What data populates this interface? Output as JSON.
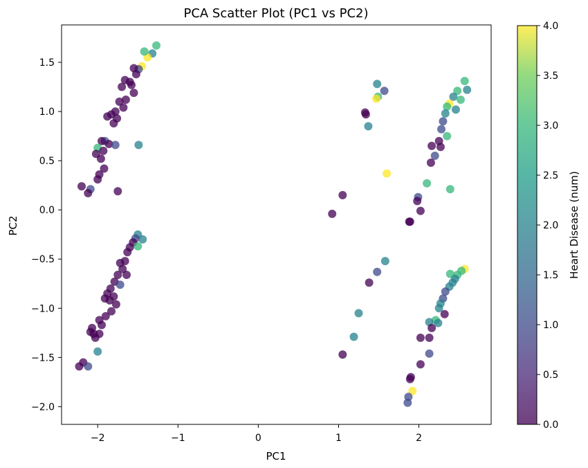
{
  "chart_data": {
    "type": "scatter",
    "title": "PCA Scatter Plot (PC1 vs PC2)",
    "xlabel": "PC1",
    "ylabel": "PC2",
    "xlim": [
      -2.45,
      2.9
    ],
    "ylim": [
      -2.18,
      1.88
    ],
    "xticks": [
      -2,
      -1,
      0,
      1,
      2
    ],
    "yticks": [
      -2.0,
      -1.5,
      -1.0,
      -0.5,
      0.0,
      0.5,
      1.0,
      1.5
    ],
    "grid": false,
    "colormap": "viridis",
    "colorbar": {
      "label": "Heart Disease (num)",
      "range": [
        0,
        4
      ],
      "ticks": [
        0.0,
        0.5,
        1.0,
        1.5,
        2.0,
        2.5,
        3.0,
        3.5,
        4.0
      ]
    },
    "points": [
      {
        "x": -1.27,
        "y": 1.67,
        "c": 3
      },
      {
        "x": -1.32,
        "y": 1.59,
        "c": 2
      },
      {
        "x": -1.38,
        "y": 1.55,
        "c": 4
      },
      {
        "x": -1.42,
        "y": 1.61,
        "c": 3
      },
      {
        "x": -1.45,
        "y": 1.46,
        "c": 4
      },
      {
        "x": -1.49,
        "y": 1.43,
        "c": 1
      },
      {
        "x": -1.55,
        "y": 1.44,
        "c": 0
      },
      {
        "x": -1.52,
        "y": 1.38,
        "c": 0
      },
      {
        "x": -1.6,
        "y": 1.3,
        "c": 0
      },
      {
        "x": -1.66,
        "y": 1.32,
        "c": 0
      },
      {
        "x": -1.7,
        "y": 1.25,
        "c": 0
      },
      {
        "x": -1.58,
        "y": 1.27,
        "c": 0
      },
      {
        "x": -1.55,
        "y": 1.19,
        "c": 0
      },
      {
        "x": -1.65,
        "y": 1.12,
        "c": 0
      },
      {
        "x": -1.73,
        "y": 1.1,
        "c": 0
      },
      {
        "x": -1.78,
        "y": 1.0,
        "c": 0
      },
      {
        "x": -1.68,
        "y": 1.04,
        "c": 0
      },
      {
        "x": -1.83,
        "y": 0.97,
        "c": 0
      },
      {
        "x": -1.88,
        "y": 0.95,
        "c": 0
      },
      {
        "x": -1.76,
        "y": 0.93,
        "c": 0
      },
      {
        "x": -1.8,
        "y": 0.88,
        "c": 0
      },
      {
        "x": -1.91,
        "y": 0.7,
        "c": 1
      },
      {
        "x": -1.95,
        "y": 0.7,
        "c": 0
      },
      {
        "x": -1.86,
        "y": 0.67,
        "c": 0
      },
      {
        "x": -2.0,
        "y": 0.63,
        "c": 3
      },
      {
        "x": -1.78,
        "y": 0.66,
        "c": 1
      },
      {
        "x": -1.93,
        "y": 0.6,
        "c": 0
      },
      {
        "x": -2.02,
        "y": 0.57,
        "c": 0
      },
      {
        "x": -1.96,
        "y": 0.52,
        "c": 0
      },
      {
        "x": -1.92,
        "y": 0.42,
        "c": 0
      },
      {
        "x": -1.98,
        "y": 0.36,
        "c": 0
      },
      {
        "x": -2.0,
        "y": 0.31,
        "c": 0
      },
      {
        "x": -2.2,
        "y": 0.24,
        "c": 0
      },
      {
        "x": -2.09,
        "y": 0.21,
        "c": 1
      },
      {
        "x": -2.12,
        "y": 0.17,
        "c": 0
      },
      {
        "x": -1.75,
        "y": 0.19,
        "c": 0
      },
      {
        "x": -1.49,
        "y": 0.66,
        "c": 2
      },
      {
        "x": -1.5,
        "y": -0.25,
        "c": 2
      },
      {
        "x": -1.44,
        "y": -0.3,
        "c": 2
      },
      {
        "x": -1.53,
        "y": -0.29,
        "c": 1
      },
      {
        "x": -1.56,
        "y": -0.33,
        "c": 0
      },
      {
        "x": -1.5,
        "y": -0.37,
        "c": 3
      },
      {
        "x": -1.6,
        "y": -0.38,
        "c": 0
      },
      {
        "x": -1.63,
        "y": -0.43,
        "c": 0
      },
      {
        "x": -1.66,
        "y": -0.52,
        "c": 0
      },
      {
        "x": -1.72,
        "y": -0.54,
        "c": 0
      },
      {
        "x": -1.69,
        "y": -0.6,
        "c": 0
      },
      {
        "x": -1.75,
        "y": -0.66,
        "c": 0
      },
      {
        "x": -1.64,
        "y": -0.66,
        "c": 0
      },
      {
        "x": -1.79,
        "y": -0.73,
        "c": 0
      },
      {
        "x": -1.72,
        "y": -0.76,
        "c": 1
      },
      {
        "x": -1.84,
        "y": -0.8,
        "c": 0
      },
      {
        "x": -1.88,
        "y": -0.85,
        "c": 0
      },
      {
        "x": -1.91,
        "y": -0.9,
        "c": 0
      },
      {
        "x": -1.8,
        "y": -0.88,
        "c": 0
      },
      {
        "x": -1.85,
        "y": -0.92,
        "c": 0
      },
      {
        "x": -1.77,
        "y": -0.96,
        "c": 0
      },
      {
        "x": -1.83,
        "y": -1.03,
        "c": 0
      },
      {
        "x": -1.9,
        "y": -1.08,
        "c": 0
      },
      {
        "x": -1.98,
        "y": -1.12,
        "c": 0
      },
      {
        "x": -1.95,
        "y": -1.17,
        "c": 0
      },
      {
        "x": -2.07,
        "y": -1.2,
        "c": 0
      },
      {
        "x": -2.09,
        "y": -1.24,
        "c": 0
      },
      {
        "x": -2.05,
        "y": -1.26,
        "c": 0
      },
      {
        "x": -1.98,
        "y": -1.26,
        "c": 0
      },
      {
        "x": -2.03,
        "y": -1.3,
        "c": 0
      },
      {
        "x": -2.0,
        "y": -1.44,
        "c": 2
      },
      {
        "x": -2.18,
        "y": -1.55,
        "c": 0
      },
      {
        "x": -2.23,
        "y": -1.59,
        "c": 0
      },
      {
        "x": -2.12,
        "y": -1.59,
        "c": 1
      },
      {
        "x": 1.48,
        "y": 1.28,
        "c": 2
      },
      {
        "x": 1.57,
        "y": 1.21,
        "c": 1
      },
      {
        "x": 1.49,
        "y": 1.15,
        "c": 3
      },
      {
        "x": 1.47,
        "y": 1.13,
        "c": 4
      },
      {
        "x": 1.34,
        "y": 0.97,
        "c": 0
      },
      {
        "x": 1.33,
        "y": 0.99,
        "c": 0
      },
      {
        "x": 1.37,
        "y": 0.85,
        "c": 2
      },
      {
        "x": 1.6,
        "y": 0.37,
        "c": 4
      },
      {
        "x": 1.05,
        "y": 0.15,
        "c": 0
      },
      {
        "x": 0.92,
        "y": -0.04,
        "c": 0
      },
      {
        "x": 2.57,
        "y": 1.31,
        "c": 3
      },
      {
        "x": 2.6,
        "y": 1.22,
        "c": 2
      },
      {
        "x": 2.48,
        "y": 1.21,
        "c": 3
      },
      {
        "x": 2.43,
        "y": 1.15,
        "c": 2
      },
      {
        "x": 2.52,
        "y": 1.12,
        "c": 3
      },
      {
        "x": 2.38,
        "y": 1.08,
        "c": 4
      },
      {
        "x": 2.35,
        "y": 1.05,
        "c": 3
      },
      {
        "x": 2.46,
        "y": 1.02,
        "c": 2
      },
      {
        "x": 2.33,
        "y": 0.98,
        "c": 2
      },
      {
        "x": 2.3,
        "y": 0.9,
        "c": 1
      },
      {
        "x": 2.28,
        "y": 0.82,
        "c": 1
      },
      {
        "x": 2.35,
        "y": 0.75,
        "c": 3
      },
      {
        "x": 2.25,
        "y": 0.7,
        "c": 0
      },
      {
        "x": 2.27,
        "y": 0.64,
        "c": 0
      },
      {
        "x": 2.16,
        "y": 0.65,
        "c": 0
      },
      {
        "x": 2.2,
        "y": 0.55,
        "c": 1
      },
      {
        "x": 2.15,
        "y": 0.48,
        "c": 0
      },
      {
        "x": 2.1,
        "y": 0.27,
        "c": 3
      },
      {
        "x": 2.39,
        "y": 0.21,
        "c": 3
      },
      {
        "x": 1.99,
        "y": 0.13,
        "c": 1
      },
      {
        "x": 1.98,
        "y": 0.09,
        "c": 0
      },
      {
        "x": 2.02,
        "y": -0.01,
        "c": 0
      },
      {
        "x": 1.88,
        "y": -0.12,
        "c": 0
      },
      {
        "x": 1.89,
        "y": -0.12,
        "c": 0
      },
      {
        "x": 1.58,
        "y": -0.52,
        "c": 2
      },
      {
        "x": 1.48,
        "y": -0.63,
        "c": 1
      },
      {
        "x": 1.38,
        "y": -0.74,
        "c": 0
      },
      {
        "x": 1.25,
        "y": -1.05,
        "c": 2
      },
      {
        "x": 1.19,
        "y": -1.29,
        "c": 2
      },
      {
        "x": 1.05,
        "y": -1.47,
        "c": 0
      },
      {
        "x": 2.57,
        "y": -0.6,
        "c": 4
      },
      {
        "x": 2.53,
        "y": -0.62,
        "c": 3
      },
      {
        "x": 2.48,
        "y": -0.66,
        "c": 3
      },
      {
        "x": 2.39,
        "y": -0.65,
        "c": 3
      },
      {
        "x": 2.45,
        "y": -0.7,
        "c": 2
      },
      {
        "x": 2.42,
        "y": -0.74,
        "c": 2
      },
      {
        "x": 2.38,
        "y": -0.78,
        "c": 2
      },
      {
        "x": 2.33,
        "y": -0.83,
        "c": 1
      },
      {
        "x": 2.3,
        "y": -0.9,
        "c": 1
      },
      {
        "x": 2.27,
        "y": -0.95,
        "c": 2
      },
      {
        "x": 2.25,
        "y": -1.0,
        "c": 2
      },
      {
        "x": 2.32,
        "y": -1.06,
        "c": 0
      },
      {
        "x": 2.21,
        "y": -1.12,
        "c": 3
      },
      {
        "x": 2.24,
        "y": -1.15,
        "c": 2
      },
      {
        "x": 2.13,
        "y": -1.14,
        "c": 2
      },
      {
        "x": 2.16,
        "y": -1.2,
        "c": 0
      },
      {
        "x": 2.13,
        "y": -1.3,
        "c": 0
      },
      {
        "x": 2.02,
        "y": -1.3,
        "c": 0
      },
      {
        "x": 2.13,
        "y": -1.46,
        "c": 1
      },
      {
        "x": 2.02,
        "y": -1.57,
        "c": 0
      },
      {
        "x": 1.9,
        "y": -1.7,
        "c": 0
      },
      {
        "x": 1.89,
        "y": -1.72,
        "c": 0
      },
      {
        "x": 1.92,
        "y": -1.84,
        "c": 4
      },
      {
        "x": 1.87,
        "y": -1.9,
        "c": 1
      },
      {
        "x": 1.86,
        "y": -1.96,
        "c": 1
      }
    ]
  }
}
